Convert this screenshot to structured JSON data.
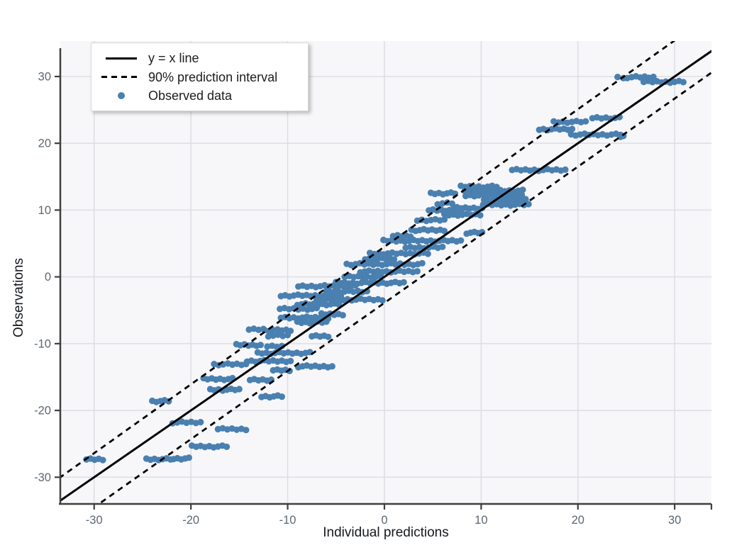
{
  "figure": {
    "colors": {
      "page_bg": "#ffffff",
      "plot_bg": "#f7f7fa",
      "grid": "#dddde3",
      "axis": "#3f3f3f",
      "tick_label": "#5c6670",
      "axis_title": "#15181c",
      "identity_line": "#000000",
      "interval_line": "#000000",
      "point": "#4a80b0",
      "legend_bg": "#ffffff",
      "legend_border": "#d9d9d9",
      "legend_text": "#1c1c1c"
    }
  },
  "legend": {
    "items": [
      {
        "id": "identity-line",
        "glyph": "solid-line",
        "label": "y = x line"
      },
      {
        "id": "prediction-interval",
        "glyph": "dashed-line",
        "label": "90% prediction interval"
      },
      {
        "id": "observed-data",
        "glyph": "point",
        "label": "Observed data"
      }
    ]
  },
  "chart_data": {
    "type": "scatter",
    "title": "",
    "xlabel": "Individual predictions",
    "ylabel": "Observations",
    "xlim": [
      -33.5,
      33.8
    ],
    "ylim": [
      -34.0,
      35.3
    ],
    "xticks": [
      -30,
      -20,
      -10,
      0,
      10,
      20,
      30
    ],
    "yticks": [
      -30,
      -20,
      -10,
      0,
      10,
      20,
      30
    ],
    "grid": true,
    "legend_position": "top-left",
    "lines": {
      "identity": {
        "slope": 1.0,
        "intercept": 0.0,
        "style": "solid",
        "label": "y = x line"
      },
      "upper_interval": {
        "slope": 1.03,
        "intercept": 4.5,
        "style": "dashed",
        "label": "90% prediction interval (upper)"
      },
      "lower_interval": {
        "slope": 1.02,
        "intercept": -3.9,
        "style": "dashed",
        "label": "90% prediction interval (lower)"
      }
    },
    "runs_format": "[y, x_start, x_end] — horizontal streaks of observed points",
    "point_spacing_x": 0.45,
    "point_runs": [
      [
        29.9,
        25.1,
        27.8
      ],
      [
        29.2,
        26.8,
        30.9
      ],
      [
        29.8,
        24.1,
        24.7
      ],
      [
        23.8,
        21.5,
        24.3
      ],
      [
        23.2,
        17.5,
        20.8
      ],
      [
        22.1,
        16.0,
        19.4
      ],
      [
        21.3,
        19.3,
        24.4
      ],
      [
        21.1,
        24.4,
        24.7
      ],
      [
        16.0,
        13.2,
        18.7
      ],
      [
        13.5,
        7.9,
        11.6
      ],
      [
        12.9,
        8.3,
        14.3
      ],
      [
        12.5,
        4.8,
        7.3
      ],
      [
        12.2,
        8.4,
        14.2
      ],
      [
        11.5,
        10.3,
        14.6
      ],
      [
        11.0,
        5.5,
        7.0
      ],
      [
        10.8,
        10.2,
        14.9
      ],
      [
        10.3,
        7.5,
        10.1
      ],
      [
        10.0,
        4.6,
        8.0
      ],
      [
        9.3,
        6.2,
        9.9
      ],
      [
        8.5,
        3.4,
        6.2
      ],
      [
        7.0,
        2.8,
        6.2
      ],
      [
        6.6,
        8.5,
        10.1
      ],
      [
        6.1,
        0.9,
        2.7
      ],
      [
        5.4,
        -0.1,
        7.9
      ],
      [
        4.4,
        2.2,
        6.0
      ],
      [
        3.5,
        -1.5,
        4.5
      ],
      [
        2.7,
        -2.0,
        1.0
      ],
      [
        1.9,
        -3.9,
        3.9
      ],
      [
        0.8,
        -2.5,
        3.4
      ],
      [
        0.0,
        -4.1,
        -0.4
      ],
      [
        -0.9,
        -5.0,
        2.0
      ],
      [
        -1.4,
        -8.9,
        -3.0
      ],
      [
        -2.2,
        -6.0,
        -1.8
      ],
      [
        -2.8,
        -10.7,
        -4.5
      ],
      [
        -3.4,
        -7.0,
        -0.2
      ],
      [
        -4.1,
        -9.0,
        -4.7
      ],
      [
        -4.8,
        -10.8,
        -7.0
      ],
      [
        -5.6,
        -6.5,
        -4.3
      ],
      [
        -6.1,
        -10.7,
        -5.8
      ],
      [
        -6.8,
        -9.0,
        -6.0
      ],
      [
        -7.8,
        -14.0,
        -12.5
      ],
      [
        -8.0,
        -12.4,
        -9.7
      ],
      [
        -8.8,
        -12.0,
        -10.0
      ],
      [
        -8.9,
        -7.5,
        -5.8
      ],
      [
        -10.2,
        -15.3,
        -12.8
      ],
      [
        -10.4,
        -12.1,
        -10.6
      ],
      [
        -11.4,
        -13.1,
        -7.7
      ],
      [
        -12.6,
        -14.2,
        -9.7
      ],
      [
        -13.1,
        -17.6,
        -14.3
      ],
      [
        -13.4,
        -8.9,
        -5.4
      ],
      [
        -14.0,
        -11.5,
        -9.8
      ],
      [
        -15.3,
        -18.7,
        -15.7
      ],
      [
        -15.4,
        -13.9,
        -11.7
      ],
      [
        -16.9,
        -18.0,
        -15.0
      ],
      [
        -17.9,
        -12.7,
        -10.6
      ],
      [
        -18.6,
        -24.0,
        -22.3
      ],
      [
        -21.8,
        -21.9,
        -19.0
      ],
      [
        -22.8,
        -17.2,
        -14.3
      ],
      [
        -25.4,
        -19.9,
        -16.3
      ],
      [
        -27.3,
        -30.8,
        -29.1
      ],
      [
        -27.3,
        -24.6,
        -22.1
      ],
      [
        -27.2,
        -21.8,
        -20.2
      ]
    ]
  }
}
